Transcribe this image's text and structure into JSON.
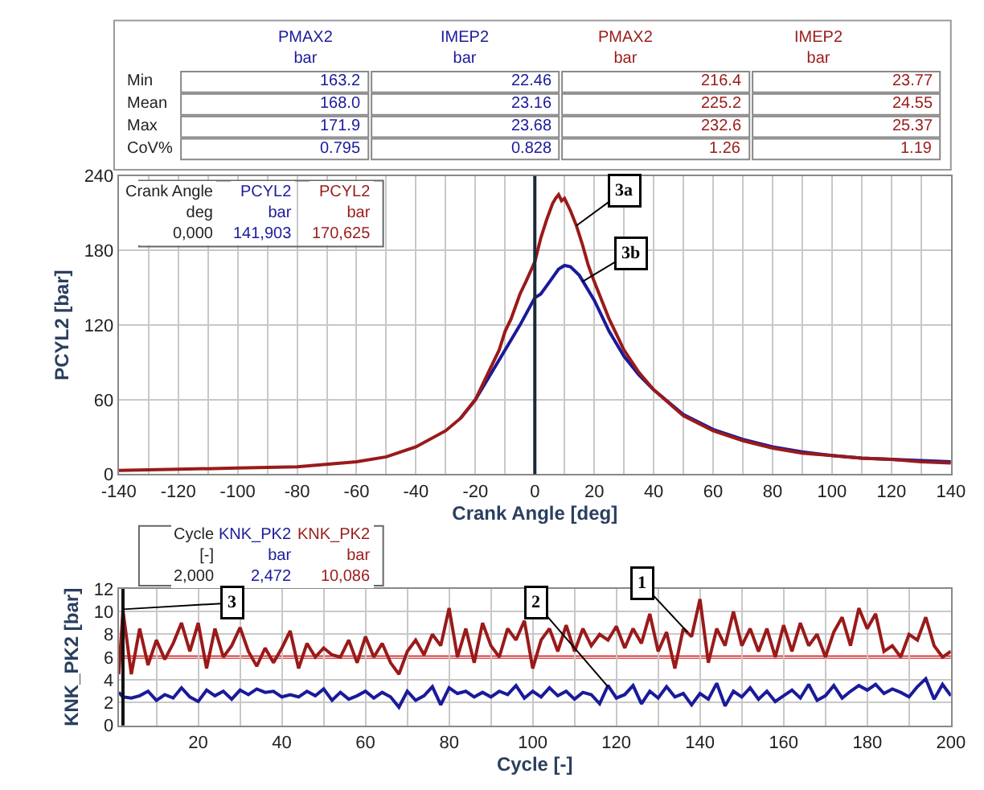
{
  "chart_data": [
    {
      "type": "other",
      "categories": [
        "PMAX2\nbar",
        "IMEP2\nbar",
        "PMAX2\nbar",
        "IMEP2\nbar"
      ],
      "y_categories": [
        "Min",
        "Mean",
        "Max",
        "CoV%"
      ],
      "cell_labels": [
        [
          "163.2",
          "22.46",
          "216.4",
          "23.77"
        ],
        [
          "168.0",
          "23.16",
          "225.2",
          "24.55"
        ],
        [
          "171.9",
          "23.68",
          "232.6",
          "25.37"
        ],
        [
          "0.795",
          "0.828",
          "1.26",
          "1.19"
        ]
      ],
      "colors": [
        "#1a1a9a",
        "#1a1a9a",
        "#9a1a1a",
        "#9a1a1a"
      ]
    },
    {
      "type": "line",
      "xlabel": "Crank Angle [deg]",
      "ylabel": "PCYL2 [bar]",
      "series": [
        {
          "name": "PCYL2",
          "color": "#1a1a9a",
          "x": [
            -25,
            -20,
            -15,
            -10,
            -5,
            0,
            2,
            5,
            8,
            10,
            12,
            15,
            20,
            25,
            30,
            35,
            40,
            50,
            60,
            70,
            80,
            90,
            100,
            110,
            120,
            130,
            140
          ],
          "values": [
            45,
            60,
            80,
            100,
            120,
            142,
            145,
            155,
            165,
            168,
            167,
            160,
            140,
            115,
            95,
            80,
            68,
            48,
            36,
            28,
            22,
            18,
            15,
            13,
            12,
            11,
            10
          ]
        },
        {
          "name": "PCYL2",
          "color": "#9a1a1a",
          "x": [
            -140,
            -120,
            -100,
            -80,
            -60,
            -50,
            -40,
            -30,
            -25,
            -20,
            -17,
            -15,
            -12,
            -10,
            -8,
            -5,
            -3,
            0,
            2,
            4,
            6,
            7,
            8,
            9,
            10,
            12,
            14,
            16,
            18,
            20,
            25,
            30,
            35,
            40,
            50,
            60,
            70,
            80,
            90,
            100,
            110,
            120,
            130,
            140
          ],
          "values": [
            3,
            4,
            5,
            6,
            10,
            14,
            22,
            35,
            45,
            60,
            75,
            85,
            100,
            115,
            125,
            145,
            155,
            171,
            190,
            205,
            218,
            222,
            225,
            220,
            222,
            212,
            200,
            185,
            168,
            155,
            125,
            100,
            82,
            68,
            47,
            35,
            27,
            21,
            17,
            15,
            13,
            12,
            10,
            9
          ]
        }
      ],
      "xlim": [
        -140,
        140
      ],
      "ylim": [
        0,
        240
      ],
      "xticks": [
        -140,
        {
          "value": -130,
          "label": null
        },
        -120,
        {
          "value": -110,
          "label": null
        },
        -100,
        {
          "value": -90,
          "label": null
        },
        -80,
        {
          "value": -70,
          "label": null
        },
        -60,
        {
          "value": -50,
          "label": null
        },
        -40,
        {
          "value": -30,
          "label": null
        },
        -20,
        {
          "value": -10,
          "label": null
        },
        0,
        {
          "value": 10,
          "label": null
        },
        20,
        {
          "value": 30,
          "label": null
        },
        40,
        {
          "value": 50,
          "label": null
        },
        60,
        {
          "value": 70,
          "label": null
        },
        80,
        {
          "value": 90,
          "label": null
        },
        100,
        {
          "value": 110,
          "label": null
        },
        120,
        {
          "value": 130,
          "label": null
        },
        140
      ],
      "yticks": [
        0,
        60,
        120,
        180,
        240
      ],
      "grid": true,
      "ref_lines": [
        {
          "axis": "x",
          "value": 0,
          "color": "#1a2a3a"
        }
      ],
      "annotations": [
        "Crank Angle\ndeg\n0,000",
        "bar\n141,903",
        "bar\n170,625",
        {
          "text": "3a",
          "x": 14,
          "y": 200
        },
        {
          "text": "3b",
          "x": 16,
          "y": 155
        }
      ]
    },
    {
      "type": "line",
      "xlabel": "Cycle [-]",
      "ylabel": "KNK_PK2 [bar]",
      "series": [
        {
          "name": "KNK_PK2",
          "color": "#1a1a9a",
          "x": [
            1,
            2,
            4,
            6,
            8,
            10,
            12,
            14,
            16,
            18,
            20,
            22,
            24,
            26,
            28,
            30,
            32,
            34,
            36,
            38,
            40,
            42,
            44,
            46,
            48,
            50,
            52,
            54,
            56,
            58,
            60,
            62,
            64,
            66,
            68,
            70,
            72,
            74,
            76,
            78,
            80,
            82,
            84,
            86,
            88,
            90,
            92,
            94,
            96,
            98,
            100,
            102,
            104,
            106,
            108,
            110,
            112,
            114,
            116,
            118,
            120,
            122,
            124,
            126,
            128,
            130,
            132,
            134,
            136,
            138,
            140,
            142,
            144,
            146,
            148,
            150,
            152,
            154,
            156,
            158,
            160,
            162,
            164,
            166,
            168,
            170,
            172,
            174,
            176,
            178,
            180,
            182,
            184,
            186,
            188,
            190,
            192,
            194,
            196,
            198,
            200
          ],
          "values": [
            2.9,
            2.5,
            2.4,
            2.6,
            3.0,
            2.2,
            2.7,
            2.4,
            3.3,
            2.5,
            2.1,
            3.1,
            2.6,
            3.0,
            2.3,
            3.1,
            2.7,
            3.2,
            2.9,
            3.0,
            2.5,
            2.7,
            2.5,
            3.0,
            2.6,
            3.2,
            2.2,
            2.9,
            2.3,
            2.6,
            3.0,
            2.4,
            2.9,
            2.5,
            1.6,
            3.0,
            2.2,
            2.6,
            3.4,
            1.8,
            3.3,
            2.8,
            3.0,
            2.5,
            2.9,
            2.5,
            3.0,
            2.7,
            3.5,
            2.4,
            3.0,
            2.5,
            3.3,
            2.6,
            3.0,
            2.3,
            2.9,
            2.7,
            1.9,
            3.5,
            2.4,
            2.7,
            3.5,
            1.9,
            3.0,
            2.4,
            3.4,
            2.5,
            2.8,
            1.8,
            2.8,
            2.3,
            3.7,
            1.7,
            3.0,
            2.5,
            3.3,
            2.3,
            3.0,
            2.1,
            2.6,
            3.1,
            2.4,
            3.6,
            2.2,
            2.6,
            3.5,
            2.4,
            3.0,
            3.5,
            3.1,
            3.6,
            2.8,
            3.2,
            2.9,
            2.5,
            3.4,
            4.1,
            2.3,
            3.6,
            2.6
          ]
        },
        {
          "name": "KNK_PK2",
          "color": "#9a1a1a",
          "x": [
            1,
            2,
            4,
            6,
            8,
            10,
            12,
            14,
            16,
            18,
            20,
            22,
            24,
            26,
            28,
            30,
            32,
            34,
            36,
            38,
            40,
            42,
            44,
            46,
            48,
            50,
            52,
            54,
            56,
            58,
            60,
            62,
            64,
            66,
            68,
            70,
            72,
            74,
            76,
            78,
            80,
            82,
            84,
            86,
            88,
            90,
            92,
            94,
            96,
            98,
            100,
            102,
            104,
            106,
            108,
            110,
            112,
            114,
            116,
            118,
            120,
            122,
            124,
            126,
            128,
            130,
            132,
            134,
            136,
            138,
            140,
            142,
            144,
            146,
            148,
            150,
            152,
            154,
            156,
            158,
            160,
            162,
            164,
            166,
            168,
            170,
            172,
            174,
            176,
            178,
            180,
            182,
            184,
            186,
            188,
            190,
            192,
            194,
            196,
            198,
            200
          ],
          "values": [
            4.5,
            10.1,
            4.5,
            8.5,
            5.3,
            7.5,
            5.8,
            7.2,
            9.0,
            6.5,
            9.0,
            5.0,
            8.5,
            6.0,
            7.0,
            8.6,
            6.5,
            5.2,
            6.8,
            5.5,
            6.8,
            8.3,
            5.0,
            7.2,
            6.0,
            6.8,
            6.2,
            6.0,
            7.5,
            5.5,
            7.8,
            6.0,
            7.2,
            5.5,
            4.5,
            6.5,
            7.5,
            6.2,
            8.0,
            7.0,
            10.3,
            6.0,
            8.5,
            5.5,
            9.0,
            7.0,
            6.0,
            8.5,
            7.5,
            9.2,
            5.0,
            7.5,
            8.5,
            6.5,
            8.8,
            6.5,
            8.5,
            7.0,
            8.0,
            7.5,
            8.7,
            6.8,
            8.5,
            7.2,
            9.8,
            6.5,
            8.2,
            5.0,
            8.5,
            7.8,
            11.1,
            5.5,
            8.5,
            7.0,
            10.0,
            7.0,
            8.5,
            6.5,
            8.5,
            6.0,
            8.8,
            6.5,
            9.0,
            7.0,
            8.0,
            6.0,
            8.2,
            9.5,
            7.0,
            10.3,
            8.5,
            9.8,
            6.5,
            7.0,
            6.0,
            8.0,
            7.5,
            9.5,
            7.0,
            6.0,
            6.5
          ]
        }
      ],
      "xlim": [
        1,
        200
      ],
      "ylim": [
        0,
        12
      ],
      "xticks": [
        {
          "value": 10,
          "label": null
        },
        20,
        {
          "value": 30,
          "label": null
        },
        40,
        {
          "value": 50,
          "label": null
        },
        60,
        {
          "value": 70,
          "label": null
        },
        80,
        {
          "value": 90,
          "label": null
        },
        100,
        {
          "value": 110,
          "label": null
        },
        120,
        {
          "value": 130,
          "label": null
        },
        140,
        {
          "value": 150,
          "label": null
        },
        160,
        {
          "value": 170,
          "label": null
        },
        180,
        {
          "value": 190,
          "label": null
        },
        200
      ],
      "yticks": [
        0,
        2,
        4,
        6,
        8,
        10,
        12
      ],
      "grid": true,
      "ref_lines": [
        {
          "axis": "x",
          "value": 2,
          "color": "#111111"
        },
        {
          "axis": "y",
          "value": 6,
          "color": "#ff0000"
        }
      ],
      "annotations": [
        "Cycle\n[-]\n2,000",
        "bar\n2,472",
        "bar\n10,086",
        {
          "text": "1",
          "x": 137,
          "y": 8.2
        },
        {
          "text": "2",
          "x": 118,
          "y": 3.4
        },
        {
          "text": "3",
          "x": 2,
          "y": 10.2
        }
      ]
    }
  ]
}
